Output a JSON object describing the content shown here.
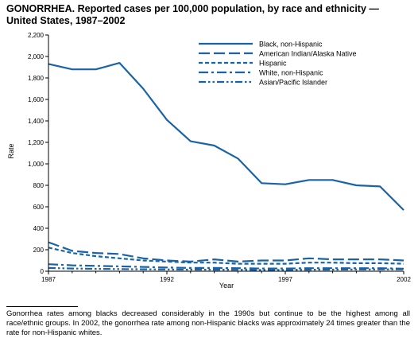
{
  "title": "GONORRHEA. Reported cases per 100,000 population, by race and ethnicity — United States, 1987–2002",
  "footnote": "Gonorrhea rates among blacks decreased considerably in the 1990s but continue to be the highest among all race/ethnic groups. In 2002, the gonorrhea rate among non-Hispanic blacks was approximately 24 times greater than the rate for non-Hispanic whites.",
  "colors": {
    "series": "#1a63a5",
    "axis": "#000000"
  },
  "chart_data": {
    "type": "line",
    "title": "GONORRHEA. Reported cases per 100,000 population, by race and ethnicity — United States, 1987–2002",
    "xlabel": "Year",
    "ylabel": "Rate",
    "xlim": [
      1987,
      2002
    ],
    "ylim": [
      0,
      2200
    ],
    "x_ticks": [
      1987,
      1992,
      1997,
      2002
    ],
    "y_ticks": [
      0,
      200,
      400,
      600,
      800,
      1000,
      1200,
      1400,
      1600,
      1800,
      2000,
      2200
    ],
    "y_tick_labels": [
      "0",
      "200",
      "400",
      "600",
      "800",
      "1,000",
      "1,200",
      "1,400",
      "1,600",
      "1,800",
      "2,000",
      "2,200"
    ],
    "x_tick_labels": [
      "1987",
      "1992",
      "1997",
      "2002"
    ],
    "grid": false,
    "legend_position": "top-right",
    "x": [
      1987,
      1988,
      1989,
      1990,
      1991,
      1992,
      1993,
      1994,
      1995,
      1996,
      1997,
      1998,
      1999,
      2000,
      2001,
      2002
    ],
    "series": [
      {
        "name": "Black, non-Hispanic",
        "dash": "solid",
        "values": [
          1930,
          1880,
          1880,
          1940,
          1700,
          1410,
          1210,
          1170,
          1050,
          820,
          810,
          850,
          850,
          800,
          790,
          570
        ]
      },
      {
        "name": "American Indian/Alaska Native",
        "dash": "longdash",
        "values": [
          270,
          190,
          170,
          160,
          120,
          100,
          90,
          110,
          90,
          100,
          100,
          120,
          110,
          110,
          110,
          100
        ]
      },
      {
        "name": "Hispanic",
        "dash": "shortdash",
        "values": [
          220,
          170,
          140,
          120,
          100,
          90,
          80,
          80,
          70,
          70,
          70,
          80,
          80,
          75,
          75,
          70
        ]
      },
      {
        "name": "White, non-Hispanic",
        "dash": "dashdot",
        "values": [
          65,
          55,
          50,
          45,
          40,
          35,
          30,
          30,
          28,
          25,
          25,
          28,
          28,
          28,
          28,
          24
        ]
      },
      {
        "name": "Asian/Pacific Islander",
        "dash": "dashdotdot",
        "values": [
          30,
          25,
          22,
          20,
          18,
          16,
          15,
          14,
          13,
          12,
          12,
          14,
          15,
          16,
          17,
          18
        ]
      }
    ]
  }
}
